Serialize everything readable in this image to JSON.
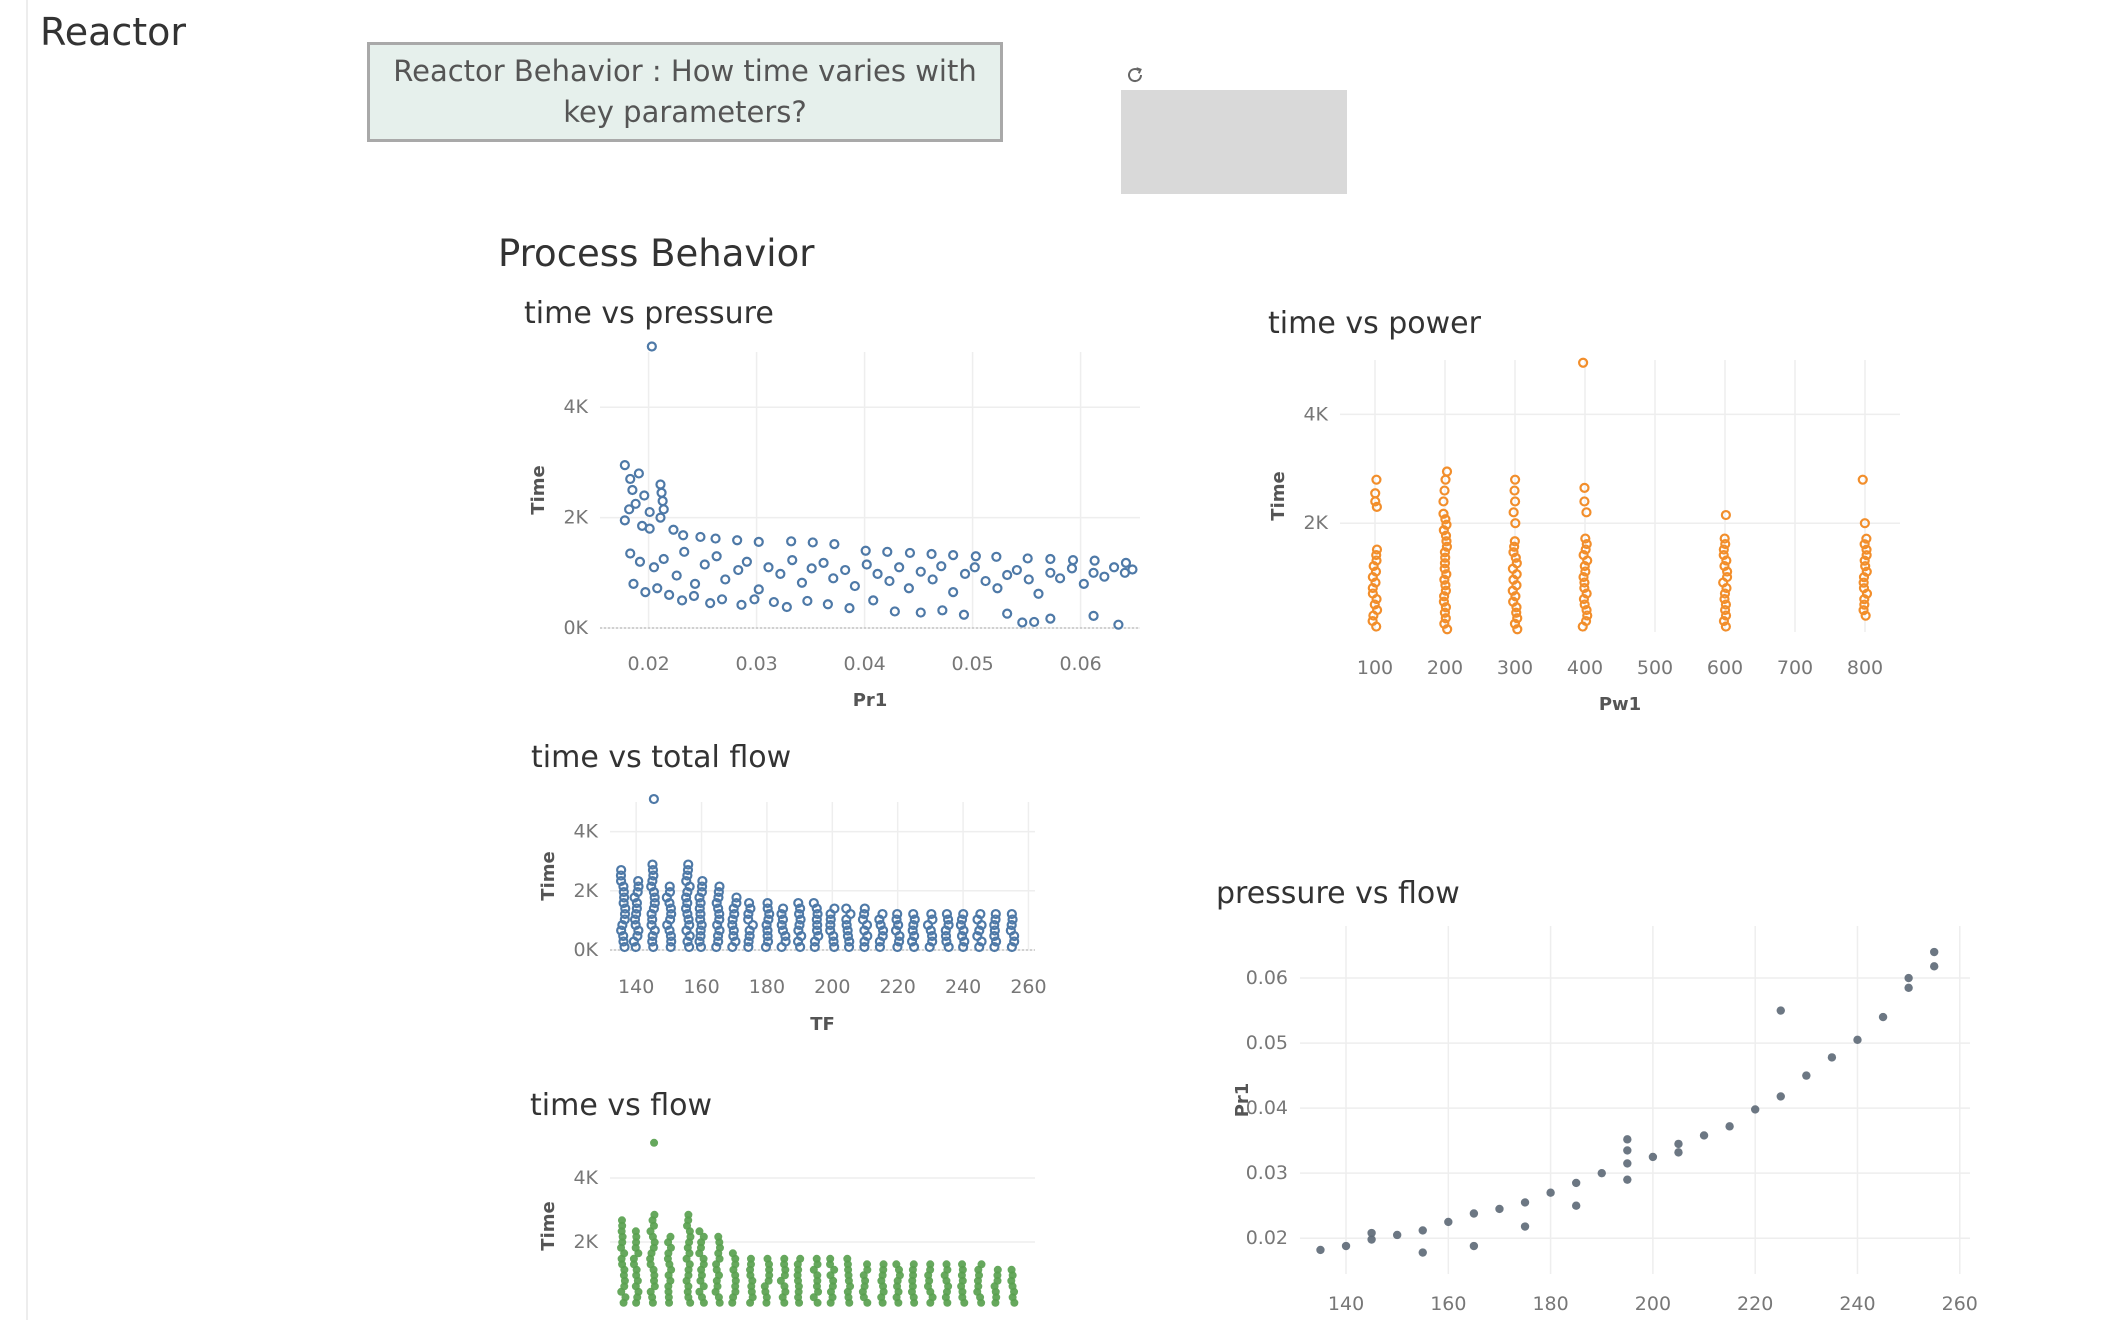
{
  "app": {
    "title": "Reactor"
  },
  "question": {
    "text": "Reactor Behavior : How time varies with key parameters?"
  },
  "toolbar": {
    "refresh_icon": "refresh-icon"
  },
  "section": {
    "title": "Process Behavior"
  },
  "colors": {
    "blue": "#4e79a7",
    "orange": "#f28e2b",
    "green": "#59a14f",
    "gray": "#5f6b78"
  },
  "chart_data": [
    {
      "id": "time_vs_pressure",
      "type": "scatter",
      "title": "time vs pressure",
      "xlabel": "Pr1",
      "ylabel": "Time",
      "xlim": [
        0.0155,
        0.0655
      ],
      "ylim": [
        0,
        5000
      ],
      "xticks": [
        {
          "v": 0.02,
          "label": "0.02"
        },
        {
          "v": 0.03,
          "label": "0.03"
        },
        {
          "v": 0.04,
          "label": "0.04"
        },
        {
          "v": 0.05,
          "label": "0.05"
        },
        {
          "v": 0.06,
          "label": "0.06"
        }
      ],
      "yticks": [
        {
          "v": 0,
          "label": "0K"
        },
        {
          "v": 2000,
          "label": "2K"
        },
        {
          "v": 4000,
          "label": "4K"
        }
      ],
      "marker": "hollow",
      "color": "#4e79a7",
      "points": [
        [
          0.0203,
          5100
        ],
        [
          0.0178,
          2950
        ],
        [
          0.0183,
          2700
        ],
        [
          0.0191,
          2800
        ],
        [
          0.0185,
          2500
        ],
        [
          0.0196,
          2400
        ],
        [
          0.0188,
          2250
        ],
        [
          0.0182,
          2150
        ],
        [
          0.0201,
          2100
        ],
        [
          0.0178,
          1950
        ],
        [
          0.0194,
          1850
        ],
        [
          0.0201,
          1800
        ],
        [
          0.0211,
          2600
        ],
        [
          0.0212,
          2450
        ],
        [
          0.0213,
          2300
        ],
        [
          0.0214,
          2150
        ],
        [
          0.0211,
          2000
        ],
        [
          0.0223,
          1780
        ],
        [
          0.0232,
          1680
        ],
        [
          0.0248,
          1650
        ],
        [
          0.0262,
          1620
        ],
        [
          0.0282,
          1590
        ],
        [
          0.0302,
          1560
        ],
        [
          0.0332,
          1570
        ],
        [
          0.0352,
          1550
        ],
        [
          0.0372,
          1520
        ],
        [
          0.0401,
          1400
        ],
        [
          0.0421,
          1380
        ],
        [
          0.0442,
          1360
        ],
        [
          0.0462,
          1340
        ],
        [
          0.0482,
          1320
        ],
        [
          0.0503,
          1300
        ],
        [
          0.0522,
          1290
        ],
        [
          0.0551,
          1260
        ],
        [
          0.0572,
          1250
        ],
        [
          0.0593,
          1230
        ],
        [
          0.0613,
          1220
        ],
        [
          0.0642,
          1180
        ],
        [
          0.0183,
          1350
        ],
        [
          0.0192,
          1200
        ],
        [
          0.0205,
          1100
        ],
        [
          0.0214,
          1250
        ],
        [
          0.0226,
          950
        ],
        [
          0.0233,
          1380
        ],
        [
          0.0243,
          800
        ],
        [
          0.0252,
          1150
        ],
        [
          0.0263,
          1300
        ],
        [
          0.0271,
          880
        ],
        [
          0.0283,
          1050
        ],
        [
          0.0291,
          1200
        ],
        [
          0.0302,
          700
        ],
        [
          0.0311,
          1100
        ],
        [
          0.0322,
          980
        ],
        [
          0.0333,
          1230
        ],
        [
          0.0342,
          820
        ],
        [
          0.0351,
          1080
        ],
        [
          0.0362,
          1180
        ],
        [
          0.0371,
          900
        ],
        [
          0.0382,
          1050
        ],
        [
          0.0391,
          760
        ],
        [
          0.0402,
          1150
        ],
        [
          0.0412,
          980
        ],
        [
          0.0423,
          850
        ],
        [
          0.0432,
          1100
        ],
        [
          0.0441,
          720
        ],
        [
          0.0452,
          1020
        ],
        [
          0.0463,
          880
        ],
        [
          0.0471,
          1120
        ],
        [
          0.0482,
          650
        ],
        [
          0.0493,
          980
        ],
        [
          0.0502,
          1100
        ],
        [
          0.0512,
          850
        ],
        [
          0.0523,
          720
        ],
        [
          0.0532,
          960
        ],
        [
          0.0541,
          1050
        ],
        [
          0.0552,
          880
        ],
        [
          0.0561,
          620
        ],
        [
          0.0572,
          1000
        ],
        [
          0.0581,
          900
        ],
        [
          0.0592,
          1080
        ],
        [
          0.0603,
          800
        ],
        [
          0.0612,
          1000
        ],
        [
          0.0622,
          930
        ],
        [
          0.0631,
          1100
        ],
        [
          0.0641,
          1000
        ],
        [
          0.0648,
          1060
        ],
        [
          0.0186,
          800
        ],
        [
          0.0197,
          650
        ],
        [
          0.0208,
          720
        ],
        [
          0.0219,
          600
        ],
        [
          0.0231,
          500
        ],
        [
          0.0242,
          580
        ],
        [
          0.0257,
          450
        ],
        [
          0.0268,
          520
        ],
        [
          0.0286,
          420
        ],
        [
          0.0298,
          520
        ],
        [
          0.0316,
          470
        ],
        [
          0.0328,
          380
        ],
        [
          0.0347,
          490
        ],
        [
          0.0366,
          430
        ],
        [
          0.0386,
          360
        ],
        [
          0.0408,
          500
        ],
        [
          0.0428,
          300
        ],
        [
          0.0452,
          280
        ],
        [
          0.0472,
          320
        ],
        [
          0.0492,
          240
        ],
        [
          0.0532,
          260
        ],
        [
          0.0546,
          100
        ],
        [
          0.0557,
          110
        ],
        [
          0.0572,
          170
        ],
        [
          0.0612,
          220
        ],
        [
          0.0635,
          60
        ]
      ]
    },
    {
      "id": "time_vs_power",
      "type": "scatter",
      "title": "time vs power",
      "xlabel": "Pw1",
      "ylabel": "Time",
      "xlim": [
        50,
        850
      ],
      "ylim": [
        0,
        5000
      ],
      "xticks": [
        {
          "v": 100,
          "label": "100"
        },
        {
          "v": 200,
          "label": "200"
        },
        {
          "v": 300,
          "label": "300"
        },
        {
          "v": 400,
          "label": "400"
        },
        {
          "v": 500,
          "label": "500"
        },
        {
          "v": 600,
          "label": "600"
        },
        {
          "v": 700,
          "label": "700"
        },
        {
          "v": 800,
          "label": "800"
        }
      ],
      "yticks": [
        {
          "v": 2000,
          "label": "2K"
        },
        {
          "v": 4000,
          "label": "4K"
        }
      ],
      "marker": "hollow",
      "color": "#f28e2b",
      "columns": [
        {
          "x": 100,
          "min": 100,
          "max": 1600,
          "extra": [
            2300,
            2400,
            2550,
            2800
          ]
        },
        {
          "x": 200,
          "min": 50,
          "max": 2200,
          "extra": [
            2400,
            2600,
            2800,
            2950
          ]
        },
        {
          "x": 300,
          "min": 50,
          "max": 1700,
          "extra": [
            2000,
            2200,
            2400,
            2600,
            2800
          ]
        },
        {
          "x": 400,
          "min": 100,
          "max": 1800,
          "extra": [
            2200,
            2400,
            2650,
            4950
          ]
        },
        {
          "x": 600,
          "min": 100,
          "max": 1800,
          "extra": [
            2150
          ]
        },
        {
          "x": 800,
          "min": 300,
          "max": 1800,
          "extra": [
            2000,
            2800
          ]
        }
      ]
    },
    {
      "id": "time_vs_total_flow",
      "type": "scatter",
      "title": "time vs total flow",
      "xlabel": "TF",
      "ylabel": "Time",
      "xlim": [
        132,
        262
      ],
      "ylim": [
        0,
        5000
      ],
      "xticks": [
        {
          "v": 140,
          "label": "140"
        },
        {
          "v": 160,
          "label": "160"
        },
        {
          "v": 180,
          "label": "180"
        },
        {
          "v": 200,
          "label": "200"
        },
        {
          "v": 220,
          "label": "220"
        },
        {
          "v": 240,
          "label": "240"
        },
        {
          "v": 260,
          "label": "260"
        }
      ],
      "yticks": [
        {
          "v": 0,
          "label": "0K"
        },
        {
          "v": 2000,
          "label": "2K"
        },
        {
          "v": 4000,
          "label": "4K"
        }
      ],
      "marker": "hollow",
      "color": "#4e79a7",
      "outliers": [
        [
          145,
          5100
        ]
      ],
      "columns": [
        {
          "x": 136,
          "max": 2800
        },
        {
          "x": 140,
          "max": 2500
        },
        {
          "x": 145,
          "max": 2900
        },
        {
          "x": 150,
          "max": 2300
        },
        {
          "x": 156,
          "max": 3000
        },
        {
          "x": 160,
          "max": 2500
        },
        {
          "x": 165,
          "max": 2200
        },
        {
          "x": 170,
          "max": 1800
        },
        {
          "x": 175,
          "max": 1600
        },
        {
          "x": 180,
          "max": 1600
        },
        {
          "x": 185,
          "max": 1500
        },
        {
          "x": 190,
          "max": 1600
        },
        {
          "x": 195,
          "max": 1600
        },
        {
          "x": 200,
          "max": 1500
        },
        {
          "x": 205,
          "max": 1500
        },
        {
          "x": 210,
          "max": 1450
        },
        {
          "x": 215,
          "max": 1400
        },
        {
          "x": 220,
          "max": 1400
        },
        {
          "x": 225,
          "max": 1400
        },
        {
          "x": 230,
          "max": 1400
        },
        {
          "x": 235,
          "max": 1400
        },
        {
          "x": 240,
          "max": 1350
        },
        {
          "x": 245,
          "max": 1350
        },
        {
          "x": 250,
          "max": 1300
        },
        {
          "x": 255,
          "max": 1300
        }
      ]
    },
    {
      "id": "time_vs_flow",
      "type": "scatter",
      "title": "time vs flow",
      "xlabel": "",
      "ylabel": "Time",
      "xlim": [
        132,
        262
      ],
      "ylim": [
        0,
        5000
      ],
      "xticks": [],
      "yticks": [
        {
          "v": 2000,
          "label": "2K"
        },
        {
          "v": 4000,
          "label": "4K"
        }
      ],
      "marker": "filled",
      "color": "#59a14f",
      "outliers": [
        [
          145,
          5100
        ]
      ],
      "columns": [
        {
          "x": 136,
          "max": 2800
        },
        {
          "x": 140,
          "max": 2500
        },
        {
          "x": 145,
          "max": 2900
        },
        {
          "x": 150,
          "max": 2300
        },
        {
          "x": 156,
          "max": 3000
        },
        {
          "x": 160,
          "max": 2500
        },
        {
          "x": 165,
          "max": 2200
        },
        {
          "x": 170,
          "max": 1800
        },
        {
          "x": 175,
          "max": 1600
        },
        {
          "x": 180,
          "max": 1600
        },
        {
          "x": 185,
          "max": 1500
        },
        {
          "x": 190,
          "max": 1600
        },
        {
          "x": 195,
          "max": 1600
        },
        {
          "x": 200,
          "max": 1500
        },
        {
          "x": 205,
          "max": 1500
        },
        {
          "x": 210,
          "max": 1450
        },
        {
          "x": 215,
          "max": 1400
        },
        {
          "x": 220,
          "max": 1400
        },
        {
          "x": 225,
          "max": 1400
        },
        {
          "x": 230,
          "max": 1400
        },
        {
          "x": 235,
          "max": 1400
        },
        {
          "x": 240,
          "max": 1350
        },
        {
          "x": 245,
          "max": 1350
        },
        {
          "x": 250,
          "max": 1300
        },
        {
          "x": 255,
          "max": 1300
        }
      ]
    },
    {
      "id": "pressure_vs_flow",
      "type": "scatter",
      "title": "pressure vs flow",
      "xlabel": "",
      "ylabel": "Pr1",
      "xlim": [
        131,
        262
      ],
      "ylim": [
        0.0145,
        0.068
      ],
      "xticks": [
        {
          "v": 140,
          "label": "140"
        },
        {
          "v": 160,
          "label": "160"
        },
        {
          "v": 180,
          "label": "180"
        },
        {
          "v": 200,
          "label": "200"
        },
        {
          "v": 220,
          "label": "220"
        },
        {
          "v": 240,
          "label": "240"
        },
        {
          "v": 260,
          "label": "260"
        }
      ],
      "yticks": [
        {
          "v": 0.02,
          "label": "0.02"
        },
        {
          "v": 0.03,
          "label": "0.03"
        },
        {
          "v": 0.04,
          "label": "0.04"
        },
        {
          "v": 0.05,
          "label": "0.05"
        },
        {
          "v": 0.06,
          "label": "0.06"
        }
      ],
      "marker": "filled",
      "color": "#5f6b78",
      "points": [
        [
          135,
          0.0182
        ],
        [
          140,
          0.0188
        ],
        [
          145,
          0.0198
        ],
        [
          145,
          0.0208
        ],
        [
          150,
          0.0205
        ],
        [
          155,
          0.0212
        ],
        [
          155,
          0.0178
        ],
        [
          160,
          0.0225
        ],
        [
          165,
          0.0238
        ],
        [
          165,
          0.0188
        ],
        [
          170,
          0.0245
        ],
        [
          175,
          0.0255
        ],
        [
          175,
          0.0218
        ],
        [
          180,
          0.027
        ],
        [
          185,
          0.0285
        ],
        [
          185,
          0.025
        ],
        [
          190,
          0.03
        ],
        [
          195,
          0.0315
        ],
        [
          195,
          0.0335
        ],
        [
          195,
          0.0352
        ],
        [
          195,
          0.029
        ],
        [
          200,
          0.0325
        ],
        [
          205,
          0.0332
        ],
        [
          205,
          0.0345
        ],
        [
          210,
          0.0358
        ],
        [
          215,
          0.0372
        ],
        [
          220,
          0.0398
        ],
        [
          225,
          0.0418
        ],
        [
          225,
          0.055
        ],
        [
          230,
          0.045
        ],
        [
          235,
          0.0478
        ],
        [
          240,
          0.0505
        ],
        [
          245,
          0.054
        ],
        [
          250,
          0.0585
        ],
        [
          250,
          0.06
        ],
        [
          255,
          0.0618
        ],
        [
          255,
          0.064
        ]
      ]
    }
  ]
}
